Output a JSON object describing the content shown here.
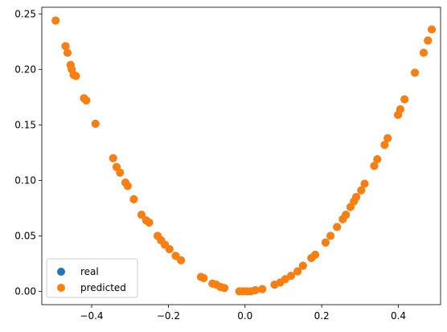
{
  "chart_data": {
    "type": "scatter",
    "title": "",
    "xlabel": "",
    "ylabel": "",
    "xlim": [
      -0.53,
      0.51
    ],
    "ylim": [
      -0.012,
      0.256
    ],
    "grid": false,
    "legend": "lower-left",
    "xticks": [
      -0.4,
      -0.2,
      0.0,
      0.2,
      0.4
    ],
    "xtick_labels": [
      "−0.4",
      "−0.2",
      "0.0",
      "0.2",
      "0.4"
    ],
    "yticks": [
      0.0,
      0.05,
      0.1,
      0.15,
      0.2,
      0.25
    ],
    "ytick_labels": [
      "0.00",
      "0.05",
      "0.10",
      "0.15",
      "0.20",
      "0.25"
    ],
    "x": [
      -0.494,
      -0.468,
      -0.463,
      -0.455,
      -0.452,
      -0.447,
      -0.441,
      -0.42,
      -0.414,
      -0.39,
      -0.344,
      -0.335,
      -0.326,
      -0.312,
      -0.306,
      -0.29,
      -0.27,
      -0.258,
      -0.25,
      -0.228,
      -0.219,
      -0.209,
      -0.197,
      -0.181,
      -0.167,
      -0.115,
      -0.108,
      -0.085,
      -0.075,
      -0.064,
      -0.054,
      -0.015,
      -0.005,
      0.005,
      0.015,
      0.027,
      0.045,
      0.077,
      0.092,
      0.105,
      0.12,
      0.137,
      0.151,
      0.173,
      0.183,
      0.21,
      0.223,
      0.24,
      0.255,
      0.263,
      0.275,
      0.284,
      0.29,
      0.303,
      0.312,
      0.337,
      0.345,
      0.364,
      0.372,
      0.399,
      0.405,
      0.416,
      0.443,
      0.466,
      0.477,
      0.487
    ],
    "series": [
      {
        "name": "real",
        "color": "#1f77b4",
        "y": [
          0.244,
          0.221,
          0.215,
          0.204,
          0.2,
          0.195,
          0.194,
          0.174,
          0.172,
          0.151,
          0.12,
          0.112,
          0.107,
          0.098,
          0.095,
          0.083,
          0.069,
          0.064,
          0.062,
          0.05,
          0.046,
          0.042,
          0.038,
          0.032,
          0.028,
          0.013,
          0.012,
          0.007,
          0.006,
          0.004,
          0.003,
          0.0,
          0.0,
          0.0,
          0.0,
          0.001,
          0.002,
          0.006,
          0.008,
          0.011,
          0.014,
          0.018,
          0.023,
          0.03,
          0.033,
          0.044,
          0.05,
          0.058,
          0.065,
          0.069,
          0.076,
          0.081,
          0.085,
          0.091,
          0.097,
          0.113,
          0.119,
          0.132,
          0.138,
          0.159,
          0.164,
          0.173,
          0.197,
          0.215,
          0.226,
          0.236
        ]
      },
      {
        "name": "predicted",
        "color": "#ff7f0e",
        "y": [
          0.244,
          0.221,
          0.215,
          0.204,
          0.2,
          0.195,
          0.194,
          0.174,
          0.172,
          0.151,
          0.12,
          0.112,
          0.107,
          0.098,
          0.095,
          0.083,
          0.069,
          0.064,
          0.062,
          0.05,
          0.046,
          0.042,
          0.038,
          0.032,
          0.028,
          0.013,
          0.012,
          0.007,
          0.006,
          0.004,
          0.003,
          0.0,
          0.0,
          0.0,
          0.0,
          0.001,
          0.002,
          0.006,
          0.008,
          0.011,
          0.014,
          0.018,
          0.023,
          0.03,
          0.033,
          0.044,
          0.05,
          0.058,
          0.065,
          0.069,
          0.076,
          0.081,
          0.085,
          0.091,
          0.097,
          0.113,
          0.119,
          0.132,
          0.138,
          0.159,
          0.164,
          0.173,
          0.197,
          0.215,
          0.226,
          0.236
        ]
      }
    ]
  }
}
